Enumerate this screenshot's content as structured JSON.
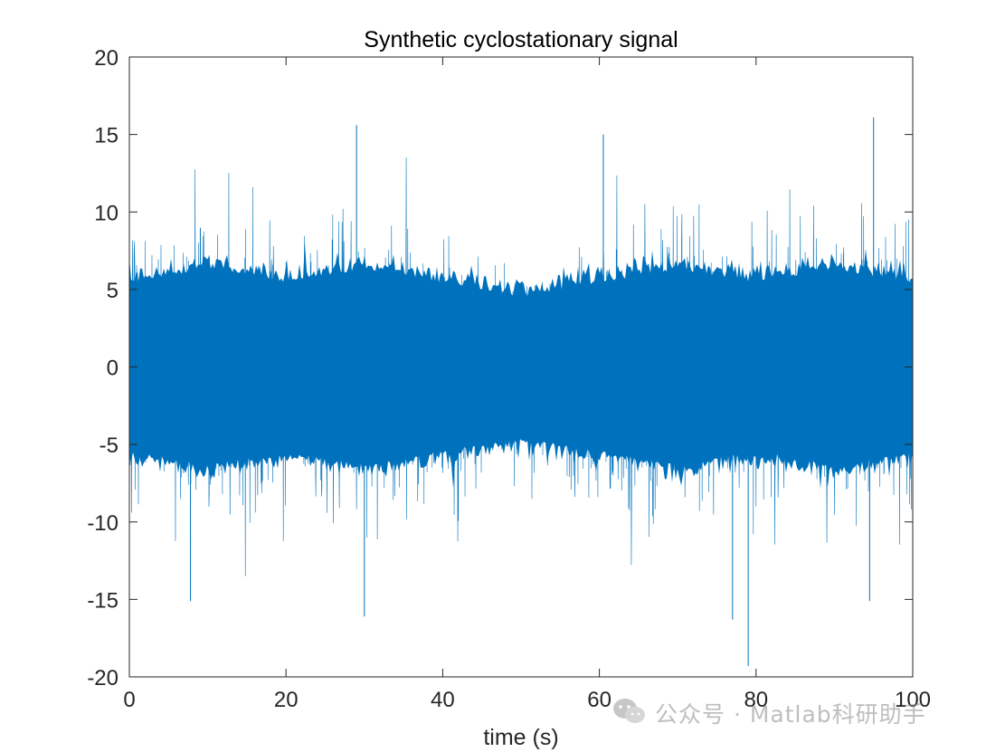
{
  "chart_data": {
    "type": "line",
    "title": "Synthetic cyclostationary signal",
    "xlabel": "time (s)",
    "ylabel": "",
    "xlim": [
      0,
      100
    ],
    "ylim": [
      -20,
      20
    ],
    "xticks": [
      0,
      20,
      40,
      60,
      80,
      100
    ],
    "yticks": [
      20,
      15,
      10,
      5,
      0,
      -5,
      -10,
      -15,
      -20
    ],
    "xtick_labels": [
      "0",
      "20",
      "40",
      "60",
      "80",
      "100"
    ],
    "ytick_labels": [
      "20",
      "15",
      "10",
      "5",
      "0",
      "-5",
      "-10",
      "-15",
      "-20"
    ],
    "grid": false,
    "series": [
      {
        "color": "#0072BD",
        "description_points": {
          "t": [
            0,
            10,
            20,
            30,
            40,
            50,
            60,
            70,
            80,
            90,
            100
          ],
          "typical_amplitude": [
            6,
            7,
            6,
            7,
            6,
            5,
            6,
            7,
            6,
            7,
            6
          ]
        },
        "peaks": [
          {
            "t": 29,
            "value": 15.6
          },
          {
            "t": 60.5,
            "value": 15.0
          },
          {
            "t": 95,
            "value": 16.1
          },
          {
            "t": 30,
            "value": -16.1
          },
          {
            "t": 79,
            "value": -19.3
          },
          {
            "t": 77,
            "value": -16.3
          },
          {
            "t": 7.8,
            "value": -15.1
          },
          {
            "t": 94.5,
            "value": -15.1
          }
        ]
      }
    ]
  },
  "watermark": {
    "text": "公众号 · Matlab科研助手",
    "icon": "wechat-icon"
  }
}
